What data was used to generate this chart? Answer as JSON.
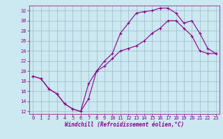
{
  "title": "",
  "xlabel": "Windchill (Refroidissement éolien,°C)",
  "ylabel": "",
  "background_color": "#cce8f0",
  "line_color": "#880088",
  "grid_color": "#99bbcc",
  "xlim": [
    -0.5,
    23.5
  ],
  "ylim": [
    11.5,
    33.0
  ],
  "xticks": [
    0,
    1,
    2,
    3,
    4,
    5,
    6,
    7,
    8,
    9,
    10,
    11,
    12,
    13,
    14,
    15,
    16,
    17,
    18,
    19,
    20,
    21,
    22,
    23
  ],
  "yticks": [
    12,
    14,
    16,
    18,
    20,
    22,
    24,
    26,
    28,
    30,
    32
  ],
  "series1_x": [
    0,
    1,
    2,
    3,
    4,
    5,
    6,
    7,
    8,
    9,
    10,
    11,
    12,
    13,
    14,
    15,
    16,
    17,
    18,
    19,
    20,
    21,
    22,
    23
  ],
  "series1_y": [
    19.0,
    18.5,
    16.5,
    15.5,
    13.5,
    12.5,
    12.0,
    14.5,
    20.0,
    22.0,
    23.5,
    27.5,
    29.5,
    31.5,
    31.8,
    32.0,
    32.5,
    32.5,
    31.5,
    29.5,
    30.0,
    27.5,
    24.5,
    23.5
  ],
  "series2_x": [
    0,
    1,
    2,
    3,
    4,
    5,
    6,
    7,
    8,
    9,
    10,
    11,
    12,
    13,
    14,
    15,
    16,
    17,
    18,
    19,
    20,
    21,
    22,
    23
  ],
  "series2_y": [
    19.0,
    18.5,
    16.5,
    15.5,
    13.5,
    12.5,
    12.0,
    17.5,
    20.0,
    21.0,
    22.5,
    24.0,
    24.5,
    25.0,
    26.0,
    27.5,
    28.5,
    30.0,
    30.0,
    28.5,
    27.0,
    24.0,
    23.5,
    23.5
  ],
  "xlabel_fontsize": 5.5,
  "tick_fontsize": 5.0,
  "linewidth": 0.8,
  "markersize": 3.0
}
